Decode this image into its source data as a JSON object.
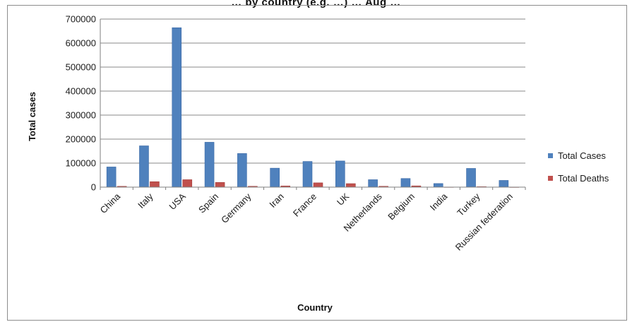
{
  "chart_data": {
    "type": "bar",
    "title": "… by country (e.g. …) … Aug …",
    "xlabel": "Country",
    "ylabel": "Total cases",
    "ylim": [
      0,
      700000
    ],
    "yticks": [
      0,
      100000,
      200000,
      300000,
      400000,
      500000,
      600000,
      700000
    ],
    "grid": true,
    "legend_position": "right",
    "categories": [
      "China",
      "Italy",
      "USA",
      "Spain",
      "Germany",
      "Iran",
      "France",
      "UK",
      "Netherlands",
      "Belgium",
      "India",
      "Turkey",
      "Russian federation"
    ],
    "series": [
      {
        "name": "Total Cases",
        "color": "#4f81bd",
        "values": [
          84000,
          172000,
          664000,
          187000,
          140000,
          79000,
          107000,
          109000,
          31000,
          36000,
          15000,
          78000,
          28000
        ]
      },
      {
        "name": "Total Deaths",
        "color": "#c0504d",
        "values": [
          3300,
          22700,
          31000,
          19600,
          3500,
          4900,
          17900,
          14600,
          3500,
          5200,
          500,
          1800,
          300
        ]
      }
    ]
  }
}
